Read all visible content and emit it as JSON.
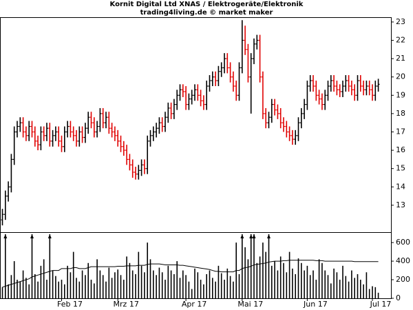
{
  "chart_data": {
    "type": "ohlc",
    "title": "Kornit Digital Ltd XNAS / Elektrogeräte/Elektronik",
    "subtitle": "trading4living.de © market maker",
    "up_color": "#000000",
    "down_color": "#e00000",
    "volume_color": "#000000",
    "ma_color": "#000000",
    "open": [
      12.2,
      12.5,
      13.5,
      14,
      15.5,
      17,
      17.3,
      17.5,
      17,
      16.8,
      17.3,
      17,
      16.5,
      16.3,
      17,
      16.8,
      17.2,
      16.5,
      16.8,
      17,
      16.5,
      16.2,
      17,
      17.3,
      17,
      16.8,
      16.5,
      17,
      16.7,
      17.2,
      17.8,
      17.5,
      17,
      17.3,
      18,
      17.5,
      17.8,
      17.2,
      17,
      16.8,
      16.5,
      16.2,
      16,
      15.5,
      15.2,
      14.8,
      14.7,
      14.9,
      15.2,
      15,
      16.5,
      16.8,
      17,
      17.2,
      17.5,
      17.3,
      17.8,
      18.3,
      18,
      18.5,
      19,
      19.3,
      19.2,
      18.5,
      18.8,
      19,
      19.3,
      19,
      18.7,
      18.5,
      19.5,
      19.8,
      20,
      19.8,
      20.3,
      20.5,
      21,
      20.5,
      20,
      19.5,
      19,
      20.5,
      22,
      21.5,
      20,
      21,
      21.8,
      22,
      20,
      18,
      17.5,
      17.8,
      18.5,
      18.2,
      18,
      17.5,
      17.3,
      17,
      16.8,
      16.6,
      16.8,
      17.5,
      18,
      18.5,
      19.5,
      19.8,
      19.5,
      19,
      18.8,
      18.5,
      19,
      19.5,
      19.8,
      19.5,
      19.3,
      19.2,
      19.5,
      19.8,
      19.5,
      19.3,
      19,
      19.8,
      19.5,
      19.3,
      19.5,
      19.3,
      19,
      19.5
    ],
    "high": [
      12.8,
      13.8,
      14.3,
      15.8,
      17.3,
      17.6,
      17.8,
      17.8,
      17.3,
      17.6,
      17.6,
      17.3,
      16.8,
      17.3,
      17.3,
      17.5,
      17.5,
      17.1,
      17.3,
      17.3,
      16.8,
      17.3,
      17.6,
      17.6,
      17.3,
      17.1,
      17.3,
      17.3,
      17.5,
      18.1,
      18.1,
      17.8,
      17.6,
      18.3,
      18.3,
      18.1,
      18.1,
      17.5,
      17.3,
      17.1,
      16.8,
      16.5,
      16.3,
      15.8,
      15.5,
      15.1,
      15.2,
      15.5,
      15.5,
      16.8,
      17.1,
      17.3,
      17.5,
      17.8,
      17.8,
      18.1,
      18.6,
      18.6,
      18.8,
      19.3,
      19.6,
      19.6,
      19.5,
      19.1,
      19.3,
      19.6,
      19.6,
      19.3,
      19.0,
      19.8,
      20.1,
      20.3,
      20.3,
      20.6,
      20.8,
      21.3,
      21.3,
      20.8,
      20.3,
      19.8,
      20.8,
      23.1,
      22.8,
      21.8,
      21.3,
      22.1,
      22.3,
      22.3,
      20.3,
      18.3,
      18.1,
      18.8,
      18.8,
      18.5,
      18.3,
      17.8,
      17.6,
      17.3,
      17.1,
      17.1,
      17.8,
      18.3,
      18.8,
      19.8,
      20.1,
      20.1,
      19.8,
      19.3,
      19.1,
      19.3,
      19.8,
      20.1,
      20.1,
      19.8,
      19.6,
      19.8,
      20.1,
      20.1,
      19.8,
      19.6,
      20.1,
      20.1,
      19.8,
      19.8,
      19.8,
      19.6,
      19.8,
      19.9
    ],
    "low": [
      11.9,
      12.2,
      13.2,
      13.7,
      15.2,
      16.7,
      17.0,
      16.7,
      16.5,
      16.5,
      16.7,
      16.2,
      16.0,
      16.0,
      16.5,
      16.5,
      16.2,
      16.2,
      16.5,
      16.2,
      15.9,
      15.9,
      16.7,
      16.7,
      16.5,
      16.2,
      16.2,
      16.4,
      16.4,
      16.9,
      17.2,
      16.7,
      16.7,
      17.0,
      17.2,
      17.2,
      16.9,
      16.7,
      16.5,
      16.2,
      15.9,
      15.7,
      15.2,
      14.9,
      14.5,
      14.4,
      14.4,
      14.6,
      14.7,
      14.7,
      16.2,
      16.5,
      16.7,
      16.9,
      17.0,
      17.0,
      17.5,
      17.7,
      17.7,
      18.2,
      18.7,
      18.9,
      18.2,
      18.2,
      18.5,
      18.7,
      18.7,
      18.4,
      18.2,
      18.2,
      19.2,
      19.5,
      19.5,
      19.5,
      20.0,
      20.2,
      20.2,
      19.7,
      19.2,
      18.7,
      18.7,
      20.2,
      21.2,
      19.7,
      18.0,
      20.7,
      21.5,
      19.7,
      17.7,
      17.2,
      17.2,
      17.5,
      17.9,
      17.7,
      17.2,
      17.0,
      16.7,
      16.5,
      16.3,
      16.3,
      16.5,
      17.2,
      17.7,
      18.2,
      19.2,
      19.2,
      18.7,
      18.5,
      18.2,
      18.2,
      18.7,
      19.2,
      19.2,
      19.0,
      18.9,
      18.9,
      19.2,
      19.2,
      19.0,
      18.7,
      18.7,
      19.2,
      19.0,
      19.0,
      19.0,
      18.7,
      18.7,
      19.2
    ],
    "close": [
      12.5,
      13.5,
      14,
      15.5,
      17,
      17.3,
      17.5,
      17,
      16.8,
      17.3,
      17,
      16.5,
      16.3,
      17,
      16.8,
      17.2,
      16.5,
      16.8,
      17,
      16.5,
      16.2,
      17,
      17.3,
      17,
      16.8,
      16.5,
      17,
      16.7,
      17.2,
      17.8,
      17.5,
      17,
      17.3,
      18,
      17.5,
      17.8,
      17.2,
      17,
      16.8,
      16.5,
      16.2,
      16,
      15.5,
      15.2,
      14.8,
      14.7,
      14.9,
      15.2,
      15,
      16.5,
      16.8,
      17,
      17.2,
      17.5,
      17.3,
      17.8,
      18.3,
      18,
      18.5,
      19,
      19.3,
      19.2,
      18.5,
      18.8,
      19,
      19.3,
      19,
      18.7,
      18.5,
      19.5,
      19.8,
      20,
      19.8,
      20.3,
      20.5,
      21,
      20.5,
      20,
      19.5,
      19,
      20.5,
      22,
      21.5,
      20,
      21,
      21.8,
      22,
      20,
      18,
      17.5,
      17.8,
      18.5,
      18.2,
      18,
      17.5,
      17.3,
      17,
      16.8,
      16.6,
      16.8,
      17.5,
      18,
      18.5,
      19.5,
      19.8,
      19.5,
      19,
      18.8,
      18.5,
      19,
      19.5,
      19.8,
      19.5,
      19.3,
      19.2,
      19.5,
      19.8,
      19.5,
      19.3,
      19,
      19.8,
      19.5,
      19.3,
      19.5,
      19.3,
      19,
      19.5,
      19.6
    ],
    "volume": [
      120,
      800,
      150,
      250,
      400,
      200,
      180,
      300,
      220,
      150,
      800,
      260,
      180,
      350,
      420,
      200,
      800,
      300,
      240,
      180,
      200,
      150,
      350,
      280,
      500,
      220,
      180,
      300,
      250,
      380,
      200,
      160,
      420,
      300,
      250,
      180,
      330,
      220,
      280,
      310,
      250,
      200,
      450,
      380,
      300,
      260,
      500,
      350,
      280,
      600,
      420,
      300,
      250,
      330,
      280,
      200,
      350,
      300,
      260,
      400,
      220,
      300,
      250,
      180,
      100,
      320,
      280,
      200,
      150,
      260,
      300,
      220,
      180,
      350,
      270,
      200,
      320,
      240,
      180,
      600,
      260,
      800,
      550,
      420,
      800,
      800,
      380,
      450,
      600,
      500,
      800,
      350,
      400,
      300,
      450,
      380,
      280,
      500,
      320,
      260,
      430,
      380,
      300,
      350,
      250,
      300,
      200,
      420,
      380,
      300,
      250,
      160,
      320,
      280,
      200,
      350,
      240,
      180,
      300,
      220,
      260,
      200,
      150,
      280,
      100,
      130,
      120,
      60
    ],
    "volume_ma": [
      120,
      130,
      140,
      150,
      160,
      170,
      180,
      190,
      200,
      210,
      230,
      240,
      250,
      260,
      270,
      280,
      290,
      300,
      300,
      300,
      320,
      320,
      320,
      320,
      330,
      330,
      320,
      320,
      320,
      330,
      340,
      340,
      340,
      340,
      340,
      340,
      340,
      340,
      340,
      345,
      345,
      345,
      350,
      350,
      350,
      350,
      355,
      355,
      355,
      365,
      370,
      370,
      370,
      370,
      365,
      360,
      360,
      360,
      360,
      360,
      355,
      355,
      350,
      345,
      340,
      335,
      330,
      325,
      320,
      315,
      310,
      300,
      290,
      290,
      285,
      285,
      285,
      285,
      285,
      300,
      300,
      320,
      330,
      335,
      345,
      360,
      365,
      370,
      375,
      380,
      390,
      395,
      400,
      400,
      400,
      405,
      405,
      410,
      410,
      410,
      410,
      410,
      410,
      410,
      410,
      410,
      405,
      405,
      405,
      400,
      400,
      400,
      400,
      400,
      400,
      400,
      400,
      400,
      400,
      395,
      395,
      395,
      395,
      395,
      395,
      395,
      395,
      395
    ],
    "xticks": [
      {
        "value": 20,
        "label": "Feb 17"
      },
      {
        "value": 39,
        "label": "Mrz 17"
      },
      {
        "value": 62,
        "label": "Apr 17"
      },
      {
        "value": 81,
        "label": "Mai 17"
      },
      {
        "value": 103,
        "label": "Jun 17"
      },
      {
        "value": 125,
        "label": "Jul 17"
      }
    ],
    "ylim": [
      11.53,
      23.26
    ],
    "yticks": [
      13,
      14,
      15,
      16,
      17,
      18,
      19,
      20,
      21,
      22,
      23
    ],
    "y2lim": [
      0,
      690
    ],
    "y2ticks": [
      0,
      200,
      400,
      600
    ]
  }
}
